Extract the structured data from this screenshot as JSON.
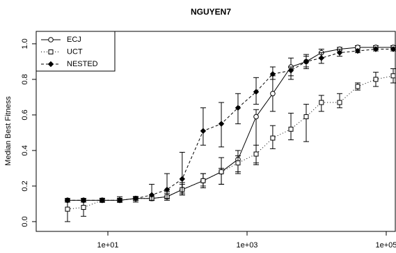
{
  "chart_data": {
    "type": "line",
    "title": "NGUYEN7",
    "y_label": "Median Best Fitness",
    "x_scale": "log",
    "x": [
      2.63,
      4.47,
      8.3,
      14.8,
      25.1,
      42.7,
      70.8,
      117,
      234,
      427,
      741,
      1350,
      2340,
      4270,
      7080,
      11700,
      21400,
      38900,
      70800,
      126000
    ],
    "xlim": [
      0.933,
      135000
    ],
    "xticks": [
      {
        "value": 10,
        "label": "1e+01"
      },
      {
        "value": 1000,
        "label": "1e+03"
      },
      {
        "value": 100000,
        "label": "1e+05"
      }
    ],
    "ylim": [
      -0.055,
      1.07
    ],
    "yticks": [
      {
        "value": 0,
        "label": "0.0"
      },
      0.2,
      0.4,
      0.6,
      0.8,
      {
        "value": 1,
        "label": "1.0"
      }
    ],
    "legend": "top-left",
    "series": [
      {
        "name": "ECJ",
        "color": "#000000",
        "linestyle": "solid",
        "marker": "circle",
        "values": [
          0.12,
          0.12,
          0.12,
          0.12,
          0.13,
          0.13,
          0.14,
          0.18,
          0.23,
          0.28,
          0.35,
          0.59,
          0.72,
          0.87,
          0.9,
          0.95,
          0.97,
          0.98,
          0.98,
          0.98
        ],
        "lower": [
          0.11,
          0.11,
          0.11,
          0.11,
          0.12,
          0.12,
          0.13,
          0.15,
          0.2,
          0.21,
          0.27,
          0.32,
          0.62,
          0.8,
          0.86,
          0.92,
          0.96,
          0.97,
          0.97,
          0.97
        ],
        "upper": [
          0.13,
          0.13,
          0.13,
          0.14,
          0.14,
          0.15,
          0.17,
          0.22,
          0.27,
          0.36,
          0.4,
          0.63,
          0.82,
          0.92,
          0.93,
          0.97,
          0.98,
          0.99,
          0.99,
          0.99
        ]
      },
      {
        "name": "UCT",
        "color": "#000000",
        "linestyle": "dotted",
        "marker": "square",
        "values": [
          0.07,
          0.08,
          0.12,
          0.12,
          0.13,
          0.13,
          0.14,
          0.18,
          0.23,
          0.28,
          0.33,
          0.38,
          0.47,
          0.52,
          0.59,
          0.67,
          0.67,
          0.76,
          0.8,
          0.82
        ],
        "lower": [
          0.0,
          0.03,
          0.11,
          0.11,
          0.12,
          0.12,
          0.12,
          0.15,
          0.19,
          0.21,
          0.28,
          0.33,
          0.41,
          0.46,
          0.45,
          0.62,
          0.64,
          0.74,
          0.76,
          0.78
        ],
        "upper": [
          0.12,
          0.13,
          0.13,
          0.13,
          0.14,
          0.14,
          0.16,
          0.21,
          0.27,
          0.3,
          0.37,
          0.43,
          0.54,
          0.61,
          0.66,
          0.71,
          0.72,
          0.78,
          0.84,
          0.86
        ]
      },
      {
        "name": "NESTED",
        "color": "#000000",
        "linestyle": "dashed",
        "marker": "diamond",
        "values": [
          0.12,
          0.12,
          0.12,
          0.12,
          0.13,
          0.15,
          0.18,
          0.24,
          0.51,
          0.55,
          0.64,
          0.73,
          0.83,
          0.85,
          0.9,
          0.92,
          0.95,
          0.96,
          0.97,
          0.97
        ],
        "lower": [
          0.11,
          0.11,
          0.11,
          0.11,
          0.11,
          0.12,
          0.13,
          0.16,
          0.43,
          0.42,
          0.55,
          0.66,
          0.8,
          0.82,
          0.87,
          0.89,
          0.93,
          0.95,
          0.96,
          0.96
        ],
        "upper": [
          0.13,
          0.13,
          0.13,
          0.13,
          0.14,
          0.21,
          0.27,
          0.39,
          0.64,
          0.67,
          0.72,
          0.81,
          0.87,
          0.87,
          0.94,
          0.95,
          0.97,
          0.97,
          0.98,
          0.98
        ]
      }
    ]
  }
}
